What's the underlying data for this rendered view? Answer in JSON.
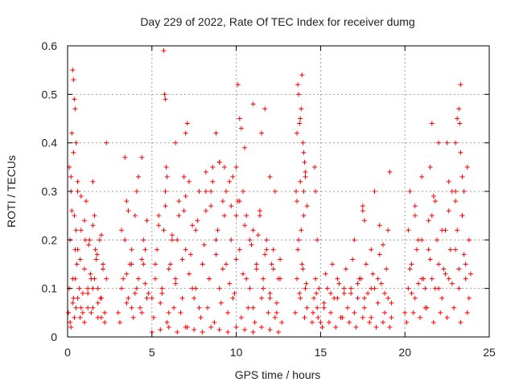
{
  "chart_data": {
    "type": "scatter",
    "title": "Day 229 of 2022, Rate Of TEC Index for receiver dumg",
    "xlabel": "GPS time / hours",
    "ylabel": "ROTI / TECUs",
    "xlim": [
      0,
      25
    ],
    "ylim": [
      0,
      0.6
    ],
    "xticks": [
      "0",
      "5",
      "10",
      "15",
      "20",
      "25"
    ],
    "yticks": [
      "0",
      "0.1",
      "0.2",
      "0.3",
      "0.4",
      "0.5",
      "0.6"
    ],
    "grid": true,
    "marker": "plus",
    "color": "#ff0000",
    "series": [
      {
        "x": [
          0.05,
          0.1,
          0.15,
          0.2,
          0.25,
          0.3,
          0.35,
          0.4,
          0.45,
          0.5,
          0.55,
          0.6,
          0.7,
          0.8,
          0.9,
          1.0,
          1.1,
          1.2,
          1.3,
          1.4,
          1.5,
          1.6,
          1.7,
          1.8,
          1.9,
          2.0,
          2.1,
          2.2,
          2.3,
          0.15,
          0.3,
          0.45,
          0.6,
          0.75,
          0.9,
          1.05,
          1.2,
          1.35,
          1.5,
          1.65,
          1.8,
          1.95,
          2.1,
          0.2,
          0.4,
          0.6,
          0.8,
          1.0,
          1.2,
          1.4,
          1.6,
          1.8,
          2.0,
          2.2,
          0.25,
          0.5,
          0.75,
          1.0,
          1.25,
          1.5,
          1.75,
          2.0,
          0.3,
          0.35,
          0.4,
          0.45,
          0.35,
          0.1,
          0.2,
          0.5,
          0.6,
          0.8,
          1.5,
          2.3,
          3.0,
          3.2,
          3.4,
          3.6,
          3.8,
          4.0,
          4.2,
          4.4,
          4.6,
          4.8,
          3.1,
          3.3,
          3.5,
          3.7,
          3.9,
          4.1,
          4.3,
          4.5,
          4.7,
          3.2,
          3.5,
          3.8,
          4.1,
          4.4,
          4.7,
          3.4,
          3.6,
          4.2,
          4.5,
          3.5,
          4.0,
          3.8,
          4.6,
          5.0,
          5.2,
          5.4,
          5.6,
          5.8,
          6.0,
          6.2,
          6.4,
          6.6,
          6.8,
          7.0,
          7.2,
          7.4,
          7.6,
          7.8,
          8.0,
          8.2,
          8.4,
          8.6,
          8.8,
          9.0,
          9.2,
          9.4,
          9.6,
          9.8,
          10.0,
          10.2,
          10.4,
          10.6,
          10.8,
          11.0,
          11.2,
          11.4,
          11.6,
          11.8,
          12.0,
          12.2,
          12.4,
          12.6,
          5.1,
          5.5,
          5.9,
          6.3,
          6.7,
          7.1,
          7.5,
          7.9,
          8.3,
          8.7,
          9.1,
          9.5,
          9.9,
          10.3,
          10.7,
          11.1,
          11.5,
          11.9,
          12.3,
          12.7,
          5.3,
          5.7,
          6.1,
          6.5,
          6.9,
          7.3,
          7.7,
          8.1,
          8.5,
          8.9,
          9.3,
          9.7,
          10.1,
          10.5,
          10.9,
          11.3,
          11.7,
          12.1,
          12.5,
          5.2,
          5.6,
          6.0,
          6.4,
          6.8,
          7.2,
          7.6,
          8.0,
          8.4,
          8.8,
          9.2,
          9.6,
          10.0,
          10.4,
          10.8,
          11.2,
          11.6,
          12.0,
          12.4,
          5.4,
          5.8,
          6.2,
          6.6,
          7.0,
          7.4,
          7.8,
          8.2,
          8.6,
          9.0,
          9.4,
          9.8,
          10.2,
          10.6,
          11.0,
          11.4,
          11.8,
          12.2,
          12.6,
          5.0,
          5.5,
          6.0,
          6.5,
          7.0,
          7.5,
          8.0,
          8.5,
          9.0,
          9.5,
          10.0,
          10.5,
          11.0,
          11.5,
          12.0,
          12.5,
          5.7,
          5.75,
          5.8,
          5.85,
          5.9,
          6.4,
          6.9,
          7.0,
          7.1,
          8.2,
          8.5,
          8.8,
          9.0,
          9.3,
          9.7,
          10.0,
          10.1,
          10.2,
          10.3,
          10.5,
          11.0,
          11.5,
          11.7,
          12.0,
          12.3,
          4.4,
          13.5,
          13.6,
          13.7,
          13.8,
          13.9,
          14.0,
          14.1,
          14.2,
          13.55,
          13.65,
          13.75,
          13.85,
          13.95,
          14.05,
          14.15,
          13.6,
          13.8,
          14.0,
          14.2,
          13.7,
          13.9,
          14.1,
          13.65,
          13.85,
          14.05,
          13.75,
          13.95,
          13.8,
          14.0,
          13.6,
          14.1,
          14.5,
          14.6,
          14.7,
          14.8,
          14.9,
          14.55,
          14.75,
          14.85,
          14.65,
          14.7,
          14.8,
          15.0,
          15.2,
          15.4,
          15.6,
          15.8,
          16.0,
          16.2,
          16.4,
          16.6,
          16.8,
          17.0,
          17.2,
          17.4,
          17.6,
          17.8,
          18.0,
          18.2,
          18.4,
          18.6,
          18.8,
          19.0,
          19.2,
          15.1,
          15.5,
          15.9,
          16.3,
          16.7,
          17.1,
          17.5,
          17.9,
          18.3,
          18.7,
          19.1,
          15.3,
          15.7,
          16.1,
          16.5,
          16.9,
          17.3,
          17.7,
          18.1,
          18.5,
          18.9,
          15.2,
          15.6,
          16.0,
          16.4,
          16.8,
          17.2,
          17.6,
          18.0,
          18.4,
          18.8,
          19.2,
          17.0,
          17.5,
          18.0,
          18.5,
          19.0,
          17.5,
          18.7,
          19.1,
          18.2,
          17.6,
          20.0,
          20.2,
          20.4,
          20.6,
          20.8,
          21.0,
          21.2,
          21.4,
          21.6,
          21.8,
          22.0,
          22.2,
          22.4,
          22.6,
          22.8,
          23.0,
          23.2,
          23.4,
          23.6,
          23.8,
          20.1,
          20.5,
          20.9,
          21.3,
          21.7,
          22.1,
          22.5,
          22.9,
          23.3,
          23.7,
          20.3,
          20.7,
          21.1,
          21.5,
          21.9,
          22.3,
          22.7,
          23.1,
          23.5,
          23.9,
          20.2,
          20.6,
          21.0,
          21.4,
          21.8,
          22.2,
          22.6,
          23.0,
          23.4,
          23.8,
          20.4,
          20.8,
          21.2,
          21.6,
          22.0,
          22.4,
          22.8,
          23.2,
          23.6,
          20.3,
          20.6,
          21.0,
          21.5,
          21.7,
          22.0,
          22.6,
          23.0,
          23.1,
          23.2,
          23.25,
          23.3,
          23.4,
          23.5,
          23.7,
          21.6,
          22.5,
          23.0,
          23.3
        ],
        "y": [
          0.05,
          0.1,
          0.2,
          0.3,
          0.42,
          0.12,
          0.08,
          0.25,
          0.18,
          0.06,
          0.15,
          0.3,
          0.1,
          0.22,
          0.05,
          0.14,
          0.28,
          0.09,
          0.2,
          0.12,
          0.06,
          0.25,
          0.16,
          0.1,
          0.2,
          0.08,
          0.15,
          0.05,
          0.12,
          0.03,
          0.07,
          0.12,
          0.18,
          0.04,
          0.09,
          0.2,
          0.06,
          0.13,
          0.1,
          0.18,
          0.04,
          0.08,
          0.14,
          0.02,
          0.04,
          0.08,
          0.06,
          0.03,
          0.1,
          0.05,
          0.12,
          0.07,
          0.04,
          0.03,
          0.26,
          0.22,
          0.16,
          0.24,
          0.19,
          0.23,
          0.17,
          0.21,
          0.55,
          0.53,
          0.49,
          0.47,
          0.38,
          0.35,
          0.33,
          0.4,
          0.32,
          0.29,
          0.32,
          0.4,
          0.05,
          0.1,
          0.2,
          0.08,
          0.15,
          0.25,
          0.12,
          0.05,
          0.18,
          0.09,
          0.03,
          0.12,
          0.07,
          0.15,
          0.04,
          0.1,
          0.06,
          0.2,
          0.08,
          0.22,
          0.28,
          0.18,
          0.3,
          0.16,
          0.24,
          0.37,
          0.26,
          0.33,
          0.15,
          0.13,
          0.09,
          0.06,
          0.11,
          0.08,
          0.15,
          0.25,
          0.1,
          0.3,
          0.05,
          0.2,
          0.12,
          0.28,
          0.08,
          0.18,
          0.32,
          0.1,
          0.22,
          0.06,
          0.15,
          0.3,
          0.12,
          0.35,
          0.2,
          0.1,
          0.28,
          0.15,
          0.32,
          0.08,
          0.25,
          0.18,
          0.3,
          0.12,
          0.2,
          0.06,
          0.15,
          0.25,
          0.1,
          0.18,
          0.08,
          0.14,
          0.05,
          0.12,
          0.04,
          0.07,
          0.03,
          0.06,
          0.05,
          0.02,
          0.08,
          0.04,
          0.06,
          0.03,
          0.07,
          0.05,
          0.09,
          0.04,
          0.06,
          0.03,
          0.08,
          0.05,
          0.04,
          0.03,
          0.18,
          0.22,
          0.15,
          0.2,
          0.26,
          0.17,
          0.24,
          0.19,
          0.27,
          0.22,
          0.25,
          0.2,
          0.28,
          0.23,
          0.19,
          0.21,
          0.17,
          0.15,
          0.12,
          0.12,
          0.09,
          0.14,
          0.11,
          0.16,
          0.13,
          0.1,
          0.15,
          0.12,
          0.17,
          0.14,
          0.11,
          0.16,
          0.13,
          0.1,
          0.14,
          0.12,
          0.09,
          0.07,
          0.23,
          0.27,
          0.21,
          0.25,
          0.29,
          0.23,
          0.3,
          0.26,
          0.32,
          0.36,
          0.3,
          0.33,
          0.28,
          0.25,
          0.22,
          0.26,
          0.2,
          0.18,
          0.16,
          0.01,
          0.015,
          0.02,
          0.01,
          0.02,
          0.015,
          0.01,
          0.02,
          0.015,
          0.01,
          0.02,
          0.015,
          0.01,
          0.02,
          0.015,
          0.01,
          0.59,
          0.5,
          0.49,
          0.35,
          0.33,
          0.4,
          0.33,
          0.42,
          0.44,
          0.34,
          0.3,
          0.42,
          0.36,
          0.35,
          0.27,
          0.35,
          0.52,
          0.45,
          0.43,
          0.39,
          0.48,
          0.42,
          0.47,
          0.33,
          0.3,
          0.37,
          0.05,
          0.12,
          0.2,
          0.08,
          0.15,
          0.25,
          0.1,
          0.06,
          0.3,
          0.18,
          0.09,
          0.22,
          0.14,
          0.04,
          0.11,
          0.42,
          0.45,
          0.38,
          0.27,
          0.5,
          0.54,
          0.33,
          0.52,
          0.47,
          0.36,
          0.44,
          0.4,
          0.32,
          0.3,
          0.28,
          0.34,
          0.03,
          0.08,
          0.12,
          0.06,
          0.1,
          0.05,
          0.09,
          0.04,
          0.35,
          0.3,
          0.2,
          0.03,
          0.06,
          0.1,
          0.05,
          0.08,
          0.12,
          0.04,
          0.09,
          0.06,
          0.1,
          0.05,
          0.08,
          0.12,
          0.06,
          0.09,
          0.04,
          0.1,
          0.07,
          0.11,
          0.05,
          0.08,
          0.04,
          0.02,
          0.03,
          0.02,
          0.04,
          0.03,
          0.02,
          0.04,
          0.03,
          0.02,
          0.03,
          0.02,
          0.13,
          0.15,
          0.11,
          0.14,
          0.16,
          0.12,
          0.15,
          0.13,
          0.17,
          0.14,
          0.07,
          0.09,
          0.08,
          0.1,
          0.09,
          0.11,
          0.08,
          0.1,
          0.12,
          0.09,
          0.07,
          0.2,
          0.26,
          0.18,
          0.23,
          0.22,
          0.27,
          0.19,
          0.34,
          0.3,
          0.24,
          0.05,
          0.1,
          0.15,
          0.08,
          0.2,
          0.12,
          0.06,
          0.18,
          0.25,
          0.1,
          0.15,
          0.08,
          0.22,
          0.12,
          0.3,
          0.18,
          0.1,
          0.25,
          0.15,
          0.08,
          0.03,
          0.05,
          0.04,
          0.06,
          0.03,
          0.05,
          0.04,
          0.06,
          0.03,
          0.05,
          0.14,
          0.18,
          0.12,
          0.16,
          0.2,
          0.14,
          0.18,
          0.22,
          0.17,
          0.13,
          0.22,
          0.25,
          0.2,
          0.24,
          0.28,
          0.22,
          0.26,
          0.3,
          0.25,
          0.2,
          0.09,
          0.11,
          0.1,
          0.12,
          0.1,
          0.13,
          0.11,
          0.14,
          0.12,
          0.3,
          0.27,
          0.33,
          0.35,
          0.29,
          0.4,
          0.32,
          0.4,
          0.45,
          0.47,
          0.44,
          0.38,
          0.33,
          0.3,
          0.35,
          0.44,
          0.4,
          0.28,
          0.52
        ]
      }
    ]
  }
}
